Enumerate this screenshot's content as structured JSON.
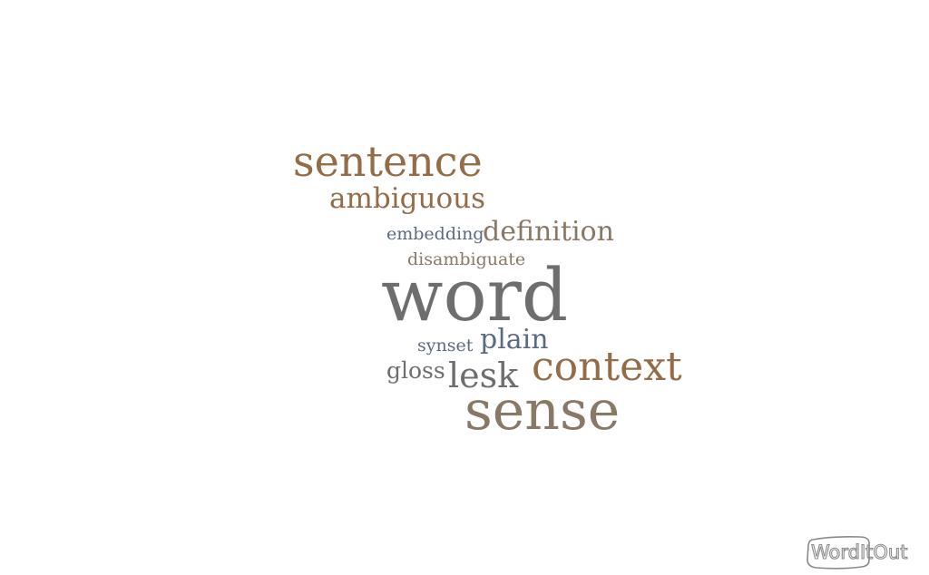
{
  "cloud": {
    "colors": {
      "brown": "#946c48",
      "gray": "#6e6e6e",
      "slate": "#5b6a80",
      "warm_gray": "#8a7866"
    },
    "words": [
      {
        "id": "sentence",
        "text": "sentence",
        "color": "#946c48"
      },
      {
        "id": "ambiguous",
        "text": "ambiguous",
        "color": "#946c48"
      },
      {
        "id": "embedding",
        "text": "embedding",
        "color": "#5b6a80"
      },
      {
        "id": "definition",
        "text": "definition",
        "color": "#8a7866"
      },
      {
        "id": "disambiguate",
        "text": "disambiguate",
        "color": "#8a7866"
      },
      {
        "id": "word",
        "text": "word",
        "color": "#6e6e6e"
      },
      {
        "id": "synset",
        "text": "synset",
        "color": "#5b6a80"
      },
      {
        "id": "plain",
        "text": "plain",
        "color": "#5b6a80"
      },
      {
        "id": "gloss",
        "text": "gloss",
        "color": "#6e6e6e"
      },
      {
        "id": "lesk",
        "text": "lesk",
        "color": "#6e6e6e"
      },
      {
        "id": "context",
        "text": "context",
        "color": "#946c48"
      },
      {
        "id": "sense",
        "text": "sense",
        "color": "#8a7866"
      }
    ]
  },
  "logo": {
    "text": "WordItOut",
    "color": "#7a7a7a"
  }
}
